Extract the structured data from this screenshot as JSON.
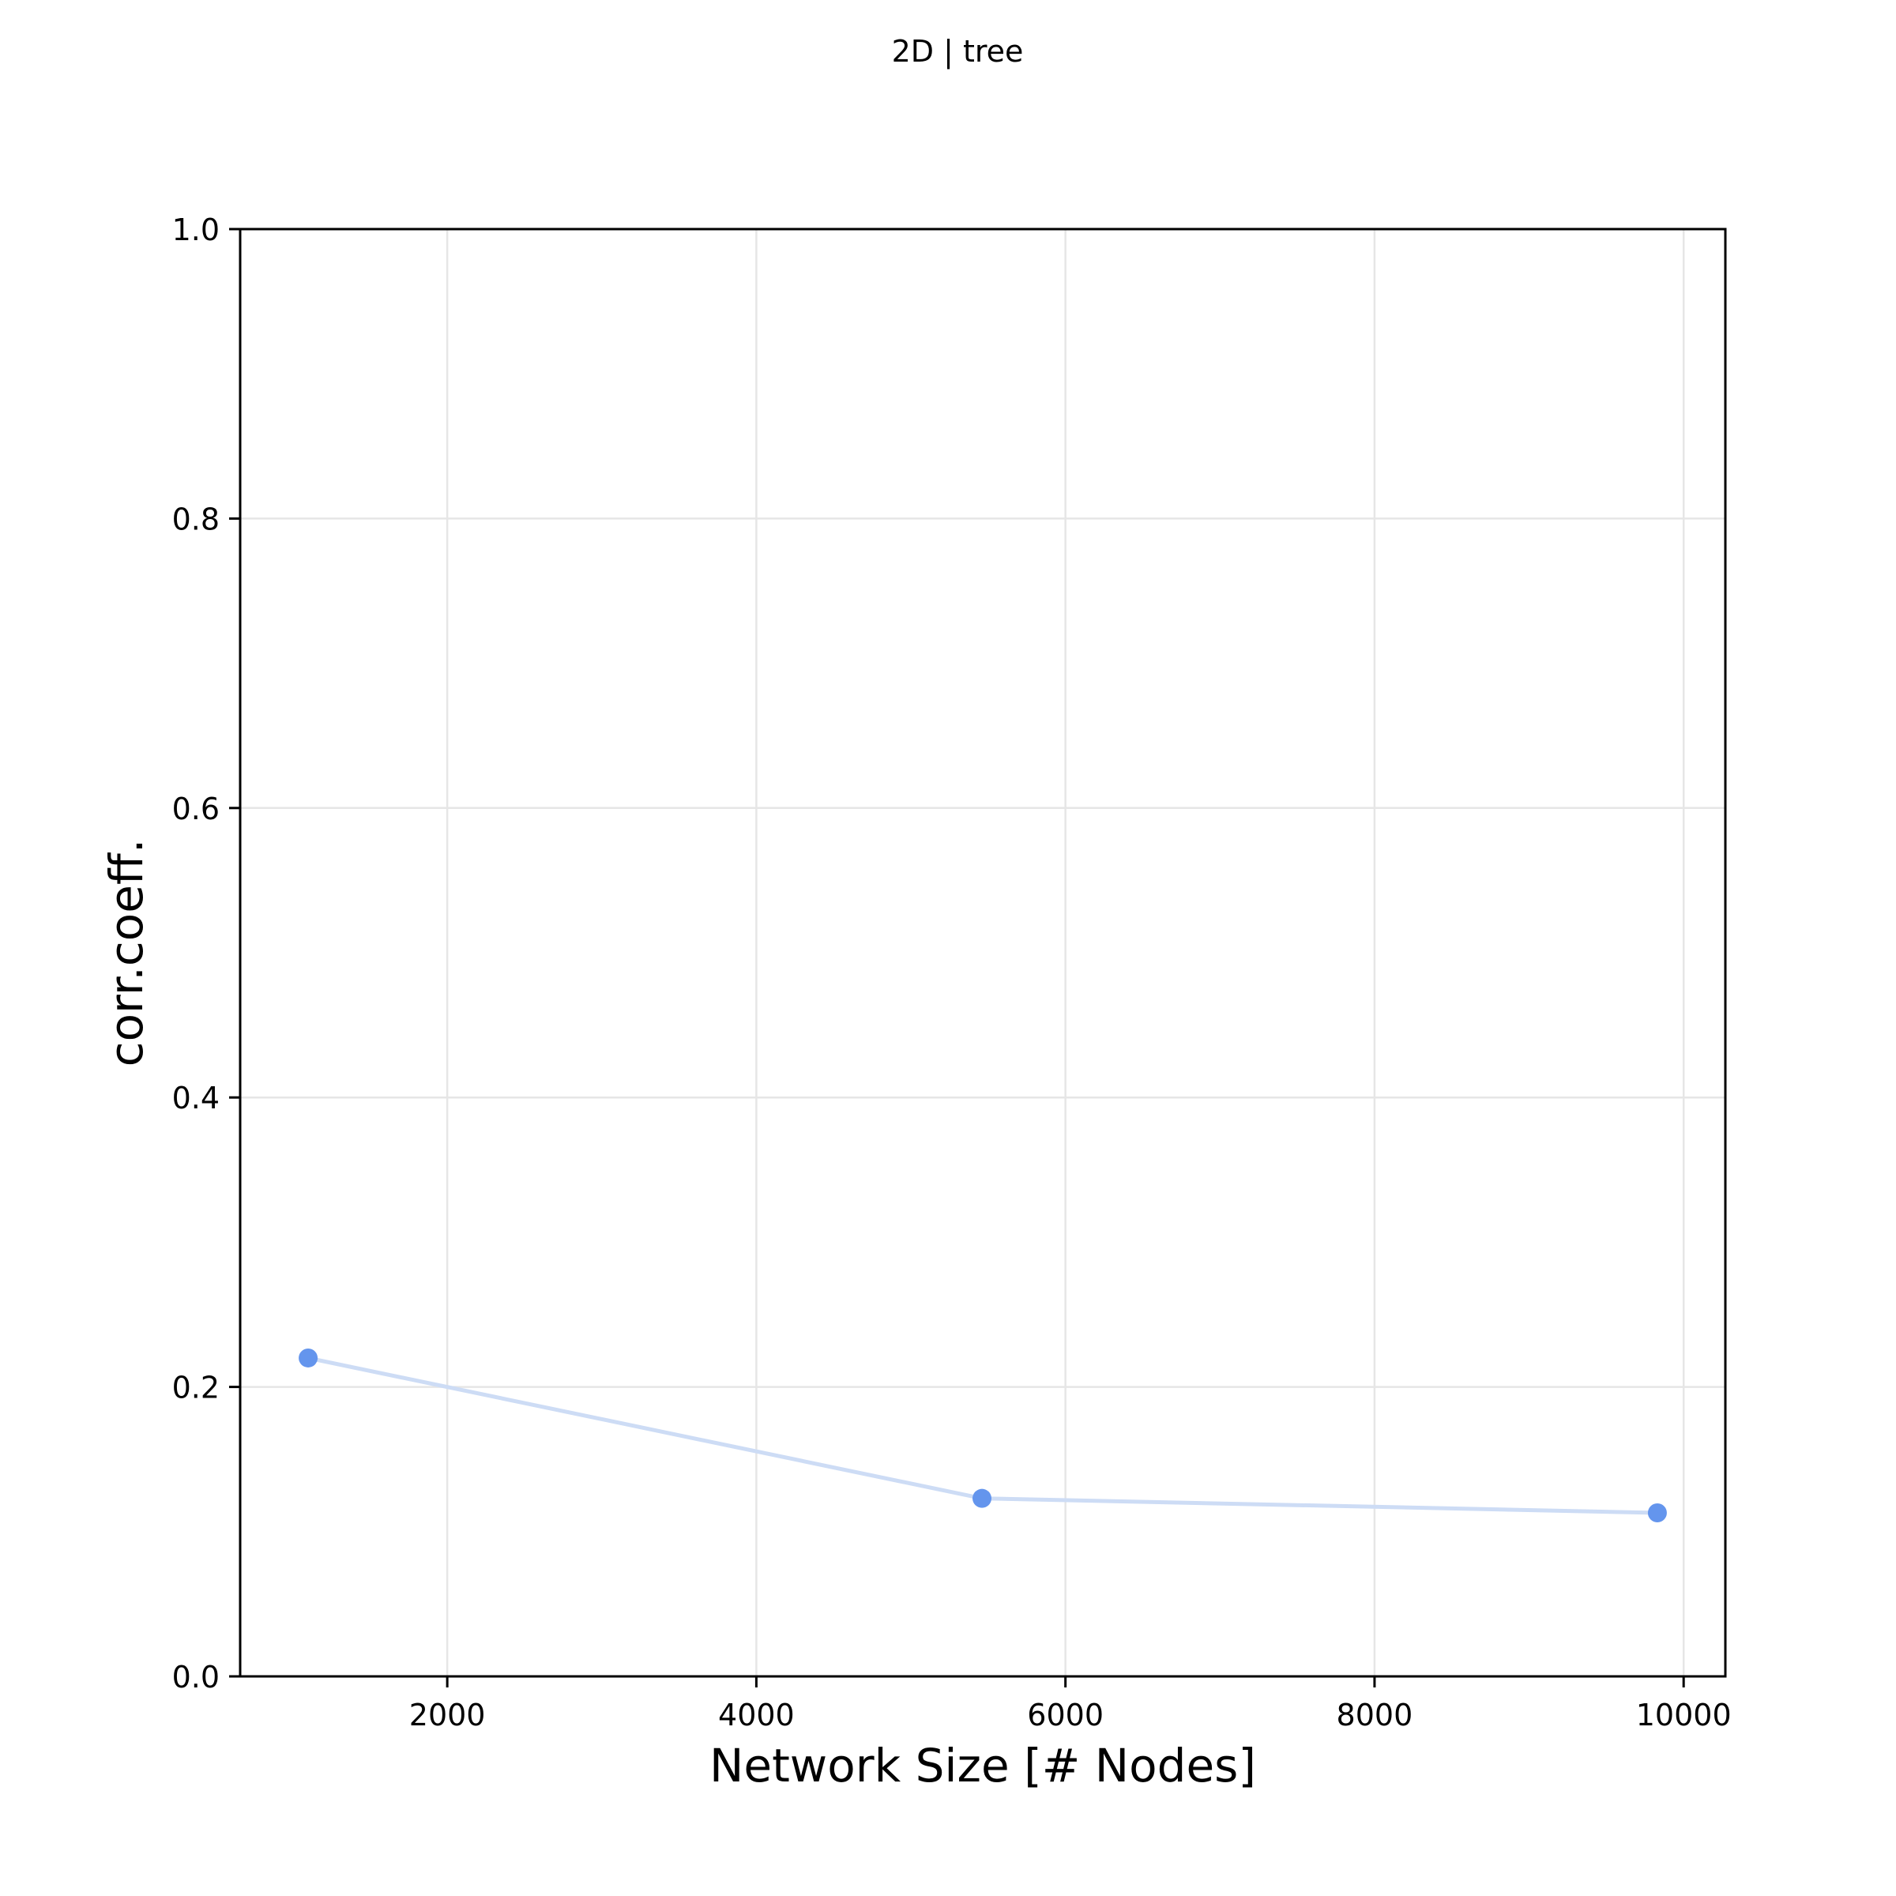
{
  "chart_data": {
    "type": "line",
    "title": "2D | tree",
    "xlabel": "Network Size [# Nodes]",
    "ylabel": "corr.coeff.",
    "xlim": [
      660,
      10270
    ],
    "ylim": [
      0.0,
      1.0
    ],
    "xticks": [
      2000,
      4000,
      6000,
      8000,
      10000
    ],
    "xtick_labels": [
      "2000",
      "4000",
      "6000",
      "8000",
      "10000"
    ],
    "yticks": [
      0.0,
      0.2,
      0.4,
      0.6,
      0.8,
      1.0
    ],
    "ytick_labels": [
      "0.0",
      "0.2",
      "0.4",
      "0.6",
      "0.8",
      "1.0"
    ],
    "grid": true,
    "series": [
      {
        "x": [
          1100,
          5460,
          9830
        ],
        "y": [
          0.22,
          0.123,
          0.113
        ],
        "line_color": "#cddcf5",
        "marker_color": "#6495ed"
      }
    ]
  }
}
